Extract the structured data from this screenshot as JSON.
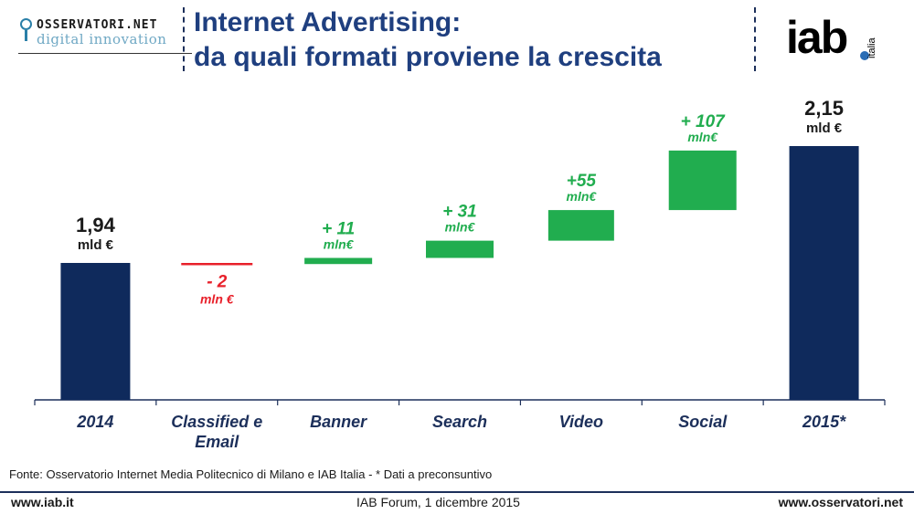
{
  "header": {
    "logo_left": {
      "top": "OSSERVATORI.NET",
      "sub": "digital innovation"
    },
    "title_line1": "Internet Advertising:",
    "title_line2": "da quali formati proviene la crescita",
    "logo_right": {
      "main": "iab",
      "sub": "italia"
    }
  },
  "chart_data": {
    "type": "bar",
    "subtype": "waterfall",
    "categories": [
      "2014",
      "Classified e Email",
      "Banner",
      "Search",
      "Video",
      "Social",
      "2015*"
    ],
    "category_lines": [
      [
        "2014"
      ],
      [
        "Classified e",
        "Email"
      ],
      [
        "Banner"
      ],
      [
        "Search"
      ],
      [
        "Video"
      ],
      [
        "Social"
      ],
      [
        "2015*"
      ]
    ],
    "values_mln_eur": [
      1940,
      -2,
      11,
      31,
      55,
      107,
      2150
    ],
    "bar_kind": [
      "total",
      "delta",
      "delta",
      "delta",
      "delta",
      "delta",
      "total"
    ],
    "value_labels": [
      [
        "1,94",
        "mld €"
      ],
      [
        "- 2",
        "mln €"
      ],
      [
        "+ 11",
        "mln€"
      ],
      [
        "+ 31",
        "mln€"
      ],
      [
        "+55",
        "mln€"
      ],
      [
        "+ 107",
        "mln€"
      ],
      [
        "2,15",
        "mld €"
      ]
    ],
    "colors": {
      "total": "#0f2a5c",
      "increase": "#21ad4f",
      "decrease": "#e8202a"
    },
    "axis_baseline": true,
    "grid": false
  },
  "footer": {
    "source": "Fonte: Osservatorio Internet Media Politecnico di Milano e IAB Italia - * Dati a preconsuntivo",
    "left": "www.iab.it",
    "center": "IAB Forum, 1 dicembre 2015",
    "right": "www.osservatori.net"
  }
}
